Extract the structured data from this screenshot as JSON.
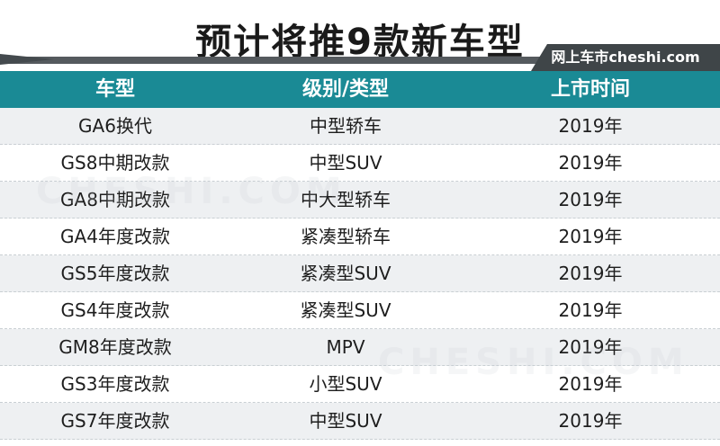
{
  "title": "预计将推9款新车型",
  "brand": "网上车市cheshi.com",
  "watermark": "CHESHI.COM",
  "accent_color": "#1a8a95",
  "table": {
    "headers": [
      "车型",
      "级别/类型",
      "上市时间"
    ],
    "rows": [
      [
        "GA6换代",
        "中型轿车",
        "2019年"
      ],
      [
        "GS8中期改款",
        "中型SUV",
        "2019年"
      ],
      [
        "GA8中期改款",
        "中大型轿车",
        "2019年"
      ],
      [
        "GA4年度改款",
        "紧凑型轿车",
        "2019年"
      ],
      [
        "GS5年度改款",
        "紧凑型SUV",
        "2019年"
      ],
      [
        "GS4年度改款",
        "紧凑型SUV",
        "2019年"
      ],
      [
        "GM8年度改款",
        "MPV",
        "2019年"
      ],
      [
        "GS3年度改款",
        "小型SUV",
        "2019年"
      ],
      [
        "GS7年度改款",
        "中型SUV",
        "2019年"
      ]
    ]
  }
}
